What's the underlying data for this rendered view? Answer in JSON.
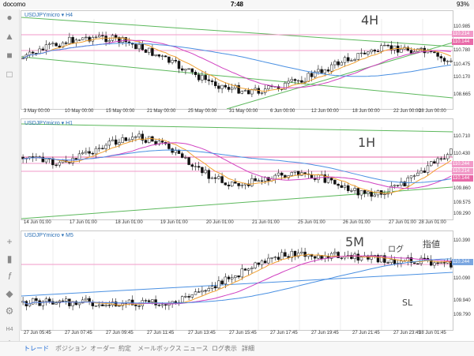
{
  "status": {
    "carrier": "docomo",
    "time": "7:48",
    "battery": "93%"
  },
  "sidebar": {
    "icons": [
      "person-icon",
      "person-add-icon",
      "chat-icon",
      "document-icon",
      "crosshair-icon",
      "candle-icon",
      "function-icon",
      "objects-icon",
      "settings-icon",
      "timeframe-icon"
    ],
    "timeframe": "H4",
    "add": "+"
  },
  "panels": [
    {
      "title": "USDJPYmicro ▾ H4",
      "note": "4H",
      "ticks": [
        "110.985",
        "110.780",
        "110.475",
        "110.170",
        "108.665"
      ],
      "tags": [
        "110.214",
        "110.144"
      ],
      "xlabels": [
        "3 May 00:00",
        "10 May 00:00",
        "15 May 00:00",
        "21 May 00:00",
        "25 May 00:00",
        "31 May 00:00",
        "6 Jun 00:00",
        "12 Jun 00:00",
        "18 Jun 00:00",
        "22 Jun 00:00",
        "28 Jun 00:00"
      ]
    },
    {
      "title": "USDJPYmicro ▾ H1",
      "note": "1H",
      "ticks": [
        "110.710",
        "110.430",
        "110.244",
        "109.860",
        "109.575",
        "109.290"
      ],
      "tags": [
        "110.244",
        "110.214",
        "110.144"
      ],
      "xlabels": [
        "14 Jun 01:00",
        "17 Jun 01:00",
        "18 Jun 01:00",
        "19 Jun 01:00",
        "20 Jun 01:00",
        "21 Jun 01:00",
        "25 Jun 01:00",
        "26 Jun 01:00",
        "27 Jun 01:00",
        "28 Jun 01:00"
      ]
    },
    {
      "title": "USDJPYmicro ▾ M5",
      "note": "5M",
      "ticks": [
        "110.390",
        "110.244",
        "110.090",
        "109.940",
        "109.790"
      ],
      "tags": [
        "110.244"
      ],
      "xlabels": [
        "27 Jun 05:45",
        "27 Jun 07:45",
        "27 Jun 09:45",
        "27 Jun 11:45",
        "27 Jun 13:45",
        "27 Jun 15:45",
        "27 Jun 17:45",
        "27 Jun 19:45",
        "27 Jun 21:45",
        "27 Jun 23:45",
        "28 Jun 01:45"
      ],
      "annotations": {
        "order": "ログ",
        "limit": "指値",
        "sl": "SL"
      }
    }
  ],
  "tabs": [
    {
      "label": "トレード",
      "active": true
    },
    {
      "label": "ポジション",
      "active": false
    },
    {
      "label": "オーダー",
      "active": false
    },
    {
      "label": "約定",
      "active": false
    },
    {
      "label": "メールボックス",
      "active": false
    },
    {
      "label": "ニュース",
      "active": false
    },
    {
      "label": "ログ表示",
      "active": false
    },
    {
      "label": "詳細",
      "active": false
    }
  ]
}
